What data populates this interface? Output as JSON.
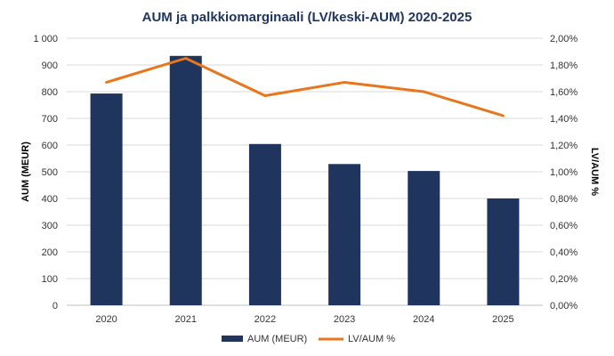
{
  "chart_data": {
    "type": "bar",
    "title": "AUM ja palkkiomarginaali (LV/keski-AUM) 2020-2025",
    "categories": [
      "2020",
      "2021",
      "2022",
      "2023",
      "2024",
      "2025"
    ],
    "ylabel": "AUM (MEUR)",
    "y2label": "LV/AUM %",
    "ylim": [
      0,
      1000
    ],
    "y_ticks": [
      "0",
      "100",
      "200",
      "300",
      "400",
      "500",
      "600",
      "700",
      "800",
      "900",
      "1 000"
    ],
    "y2lim": [
      0,
      2.0
    ],
    "y2_ticks": [
      "0,00%",
      "0,20%",
      "0,40%",
      "0,60%",
      "0,80%",
      "1,00%",
      "1,20%",
      "1,40%",
      "1,60%",
      "1,80%",
      "2,00%"
    ],
    "grid": true,
    "legend_position": "bottom",
    "series": [
      {
        "name": "AUM (MEUR)",
        "type": "bar",
        "axis": "left",
        "values": [
          793,
          934,
          604,
          529,
          503,
          400
        ]
      },
      {
        "name": "LV/AUM %",
        "type": "line",
        "axis": "right",
        "values": [
          1.67,
          1.85,
          1.57,
          1.67,
          1.6,
          1.42
        ]
      }
    ],
    "colors": {
      "bar": "#1f355e",
      "line": "#e8761c",
      "title": "#1f355e",
      "grid": "#d9d9d9"
    }
  }
}
